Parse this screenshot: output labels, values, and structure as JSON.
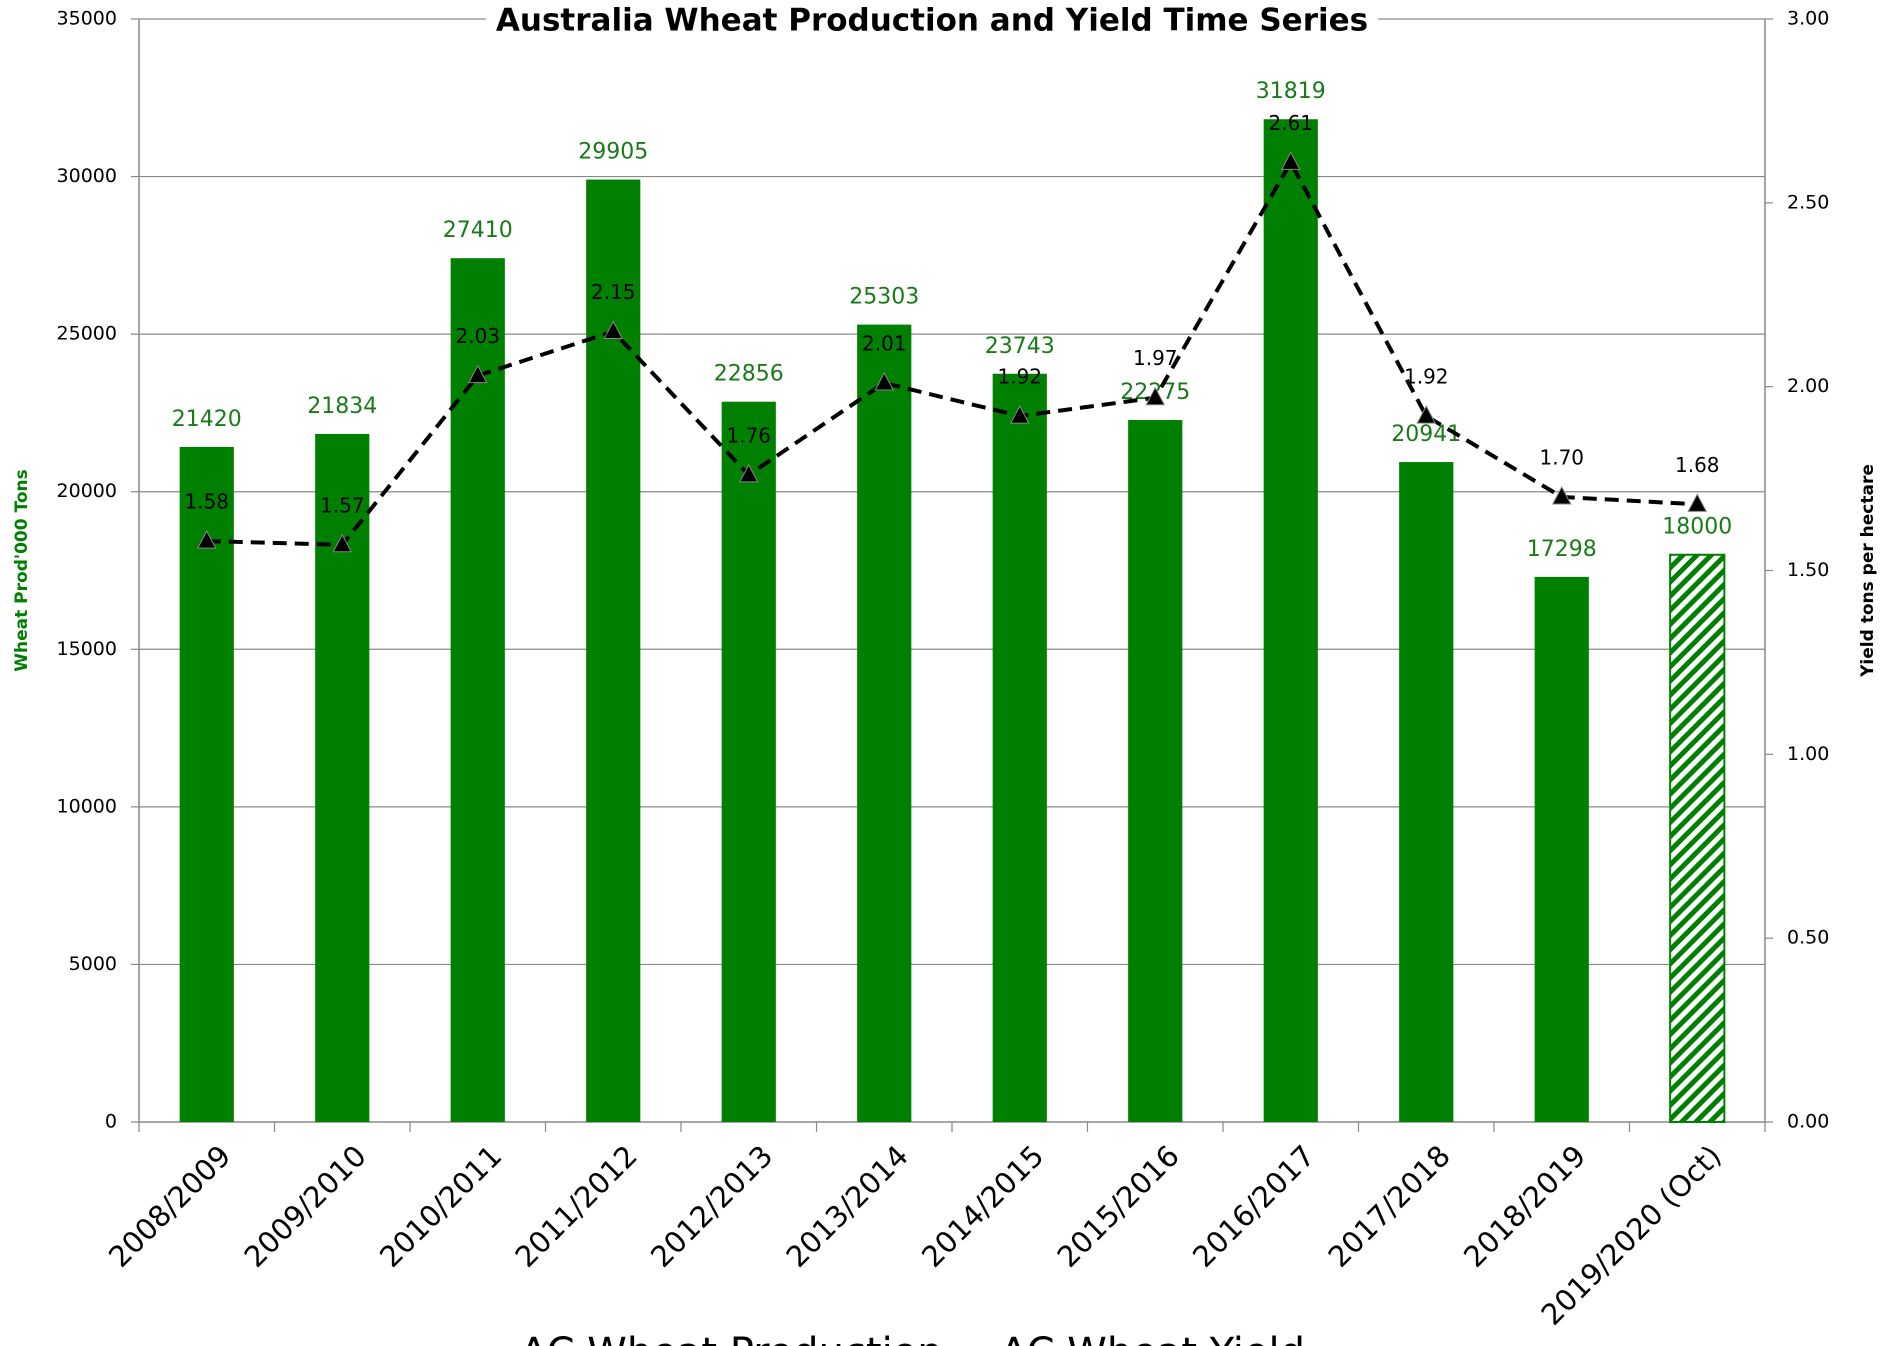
{
  "chart_data": {
    "type": "bar_line",
    "title": "Australia Wheat Production and Yield Time Series",
    "ylabel": "Wheat Prod'000 Tons",
    "y2label": "Yield tons per hectare",
    "categories": [
      "2008/2009",
      "2009/2010",
      "2010/2011",
      "2011/2012",
      "2012/2013",
      "2013/2014",
      "2014/2015",
      "2015/2016",
      "2016/2017",
      "2017/2018",
      "2018/2019",
      "2019/2020 (Oct)"
    ],
    "series": [
      {
        "name": "AC Wheat Production",
        "type": "bar",
        "color": "#008000",
        "values": [
          21420,
          21834,
          27410,
          29905,
          22856,
          25303,
          23743,
          22275,
          31819,
          20941,
          17298,
          18000
        ],
        "hatch": [
          false,
          false,
          false,
          false,
          false,
          false,
          false,
          false,
          false,
          false,
          false,
          true
        ]
      },
      {
        "name": "AC Wheat Yield",
        "type": "line",
        "axis": "y2",
        "color": "#000000",
        "values": [
          1.58,
          1.57,
          2.03,
          2.15,
          1.76,
          2.01,
          1.92,
          1.97,
          2.61,
          1.92,
          1.7,
          1.68
        ],
        "value_labels": [
          "1.58",
          "1.57",
          "2.03",
          "2.15",
          "1.76",
          "2.01",
          "1.92",
          "1.97",
          "2.61",
          "1.92",
          "1.70",
          "1.68"
        ]
      }
    ],
    "ylim": [
      0,
      35000
    ],
    "yticks": [
      0,
      5000,
      10000,
      15000,
      20000,
      25000,
      30000,
      35000
    ],
    "y2lim": [
      0,
      3
    ],
    "y2ticks": [
      {
        "value": 0,
        "label": "0.00"
      },
      {
        "value": 0.5,
        "label": "0.50"
      },
      {
        "value": 1,
        "label": "1.00"
      },
      {
        "value": 1.5,
        "label": "1.50"
      },
      {
        "value": 2,
        "label": "2.00"
      },
      {
        "value": 2.5,
        "label": "2.50"
      },
      {
        "value": 3,
        "label": "3.00"
      }
    ],
    "grid": true,
    "legend": "bottom"
  }
}
